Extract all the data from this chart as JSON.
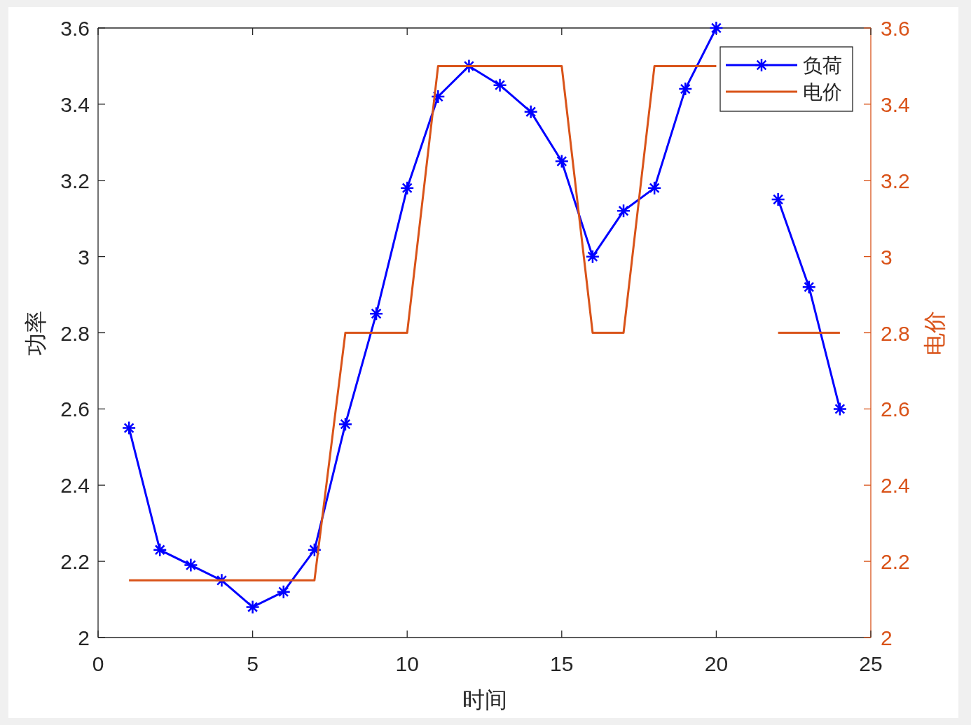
{
  "chart_data": {
    "type": "line",
    "xlabel": "时间",
    "ylabel": "功率",
    "y2label": "电价",
    "x": [
      1,
      2,
      3,
      4,
      5,
      6,
      7,
      8,
      9,
      10,
      11,
      12,
      13,
      14,
      15,
      16,
      17,
      18,
      19,
      20,
      21,
      22,
      23,
      24
    ],
    "xlim": [
      0,
      25
    ],
    "xticks": [
      0,
      5,
      10,
      15,
      20,
      25
    ],
    "ylim": [
      2,
      3.6
    ],
    "yticks": [
      2,
      2.2,
      2.4,
      2.6,
      2.8,
      3,
      3.2,
      3.4,
      3.6
    ],
    "y2lim": [
      2,
      3.6
    ],
    "y2ticks": [
      2,
      2.2,
      2.4,
      2.6,
      2.8,
      3,
      3.2,
      3.4,
      3.6
    ],
    "legend": "top right",
    "series": [
      {
        "name": "负荷",
        "color": "#0000ff",
        "marker": "cross",
        "values": [
          2.55,
          2.23,
          2.19,
          2.15,
          2.08,
          2.12,
          2.23,
          2.56,
          2.85,
          3.18,
          3.42,
          3.5,
          3.45,
          3.38,
          3.25,
          3.0,
          3.12,
          3.18,
          3.44,
          3.6,
          null,
          3.15,
          2.92,
          2.6
        ]
      },
      {
        "name": "电价",
        "color": "#d95319",
        "axis": "y2",
        "marker": "none",
        "values": [
          2.15,
          2.15,
          2.15,
          2.15,
          2.15,
          2.15,
          2.15,
          2.8,
          2.8,
          2.8,
          3.5,
          3.5,
          3.5,
          3.5,
          3.5,
          2.8,
          2.8,
          3.5,
          3.5,
          3.5,
          null,
          2.8,
          2.8,
          2.8
        ]
      }
    ]
  }
}
